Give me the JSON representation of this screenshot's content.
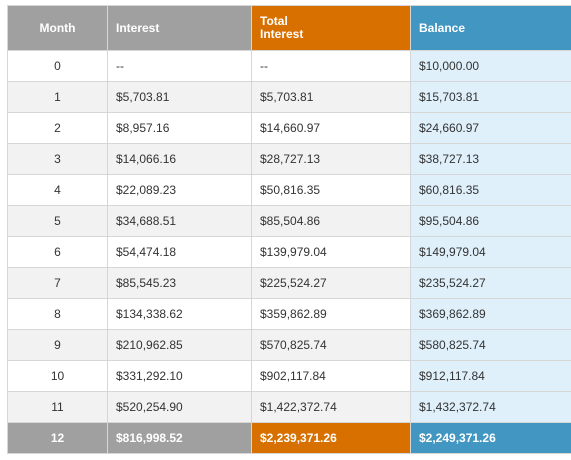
{
  "headers": {
    "month": "Month",
    "interest": "Interest",
    "total_interest_line1": "Total",
    "total_interest_line2": "Interest",
    "balance": "Balance"
  },
  "rows": [
    {
      "month": "0",
      "interest": "--",
      "total_interest": "--",
      "balance": "$10,000.00"
    },
    {
      "month": "1",
      "interest": "$5,703.81",
      "total_interest": "$5,703.81",
      "balance": "$15,703.81"
    },
    {
      "month": "2",
      "interest": "$8,957.16",
      "total_interest": "$14,660.97",
      "balance": "$24,660.97"
    },
    {
      "month": "3",
      "interest": "$14,066.16",
      "total_interest": "$28,727.13",
      "balance": "$38,727.13"
    },
    {
      "month": "4",
      "interest": "$22,089.23",
      "total_interest": "$50,816.35",
      "balance": "$60,816.35"
    },
    {
      "month": "5",
      "interest": "$34,688.51",
      "total_interest": "$85,504.86",
      "balance": "$95,504.86"
    },
    {
      "month": "6",
      "interest": "$54,474.18",
      "total_interest": "$139,979.04",
      "balance": "$149,979.04"
    },
    {
      "month": "7",
      "interest": "$85,545.23",
      "total_interest": "$225,524.27",
      "balance": "$235,524.27"
    },
    {
      "month": "8",
      "interest": "$134,338.62",
      "total_interest": "$359,862.89",
      "balance": "$369,862.89"
    },
    {
      "month": "9",
      "interest": "$210,962.85",
      "total_interest": "$570,825.74",
      "balance": "$580,825.74"
    },
    {
      "month": "10",
      "interest": "$331,292.10",
      "total_interest": "$902,117.84",
      "balance": "$912,117.84"
    },
    {
      "month": "11",
      "interest": "$520,254.90",
      "total_interest": "$1,422,372.74",
      "balance": "$1,432,372.74"
    }
  ],
  "final_row": {
    "month": "12",
    "interest": "$816,998.52",
    "total_interest": "$2,239,371.26",
    "balance": "$2,249,371.26"
  },
  "colors": {
    "header_gray": "#a0a0a0",
    "header_orange": "#d87000",
    "header_blue": "#4196c2",
    "balance_column_tint": "#dff0fb",
    "alt_row": "#f2f2f2"
  }
}
